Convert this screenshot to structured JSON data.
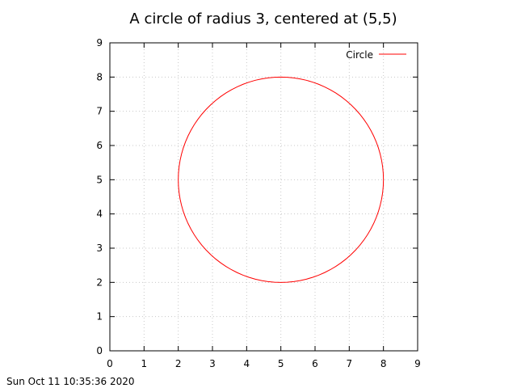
{
  "chart_data": {
    "type": "line",
    "title": "A circle of radius 3, centered at (5,5)",
    "xlabel": "",
    "ylabel": "",
    "xlim": [
      0,
      9
    ],
    "ylim": [
      0,
      9
    ],
    "xticks": [
      "0",
      "1",
      "2",
      "3",
      "4",
      "5",
      "6",
      "7",
      "8",
      "9"
    ],
    "yticks": [
      "0",
      "1",
      "2",
      "3",
      "4",
      "5",
      "6",
      "7",
      "8",
      "9"
    ],
    "grid": true,
    "legend_position": "top-right",
    "series": [
      {
        "name": "Circle",
        "color": "#ff0000",
        "center": [
          5,
          5
        ],
        "radius": 3
      }
    ]
  },
  "footer": {
    "timestamp": "Sun Oct 11 10:35:36 2020"
  }
}
